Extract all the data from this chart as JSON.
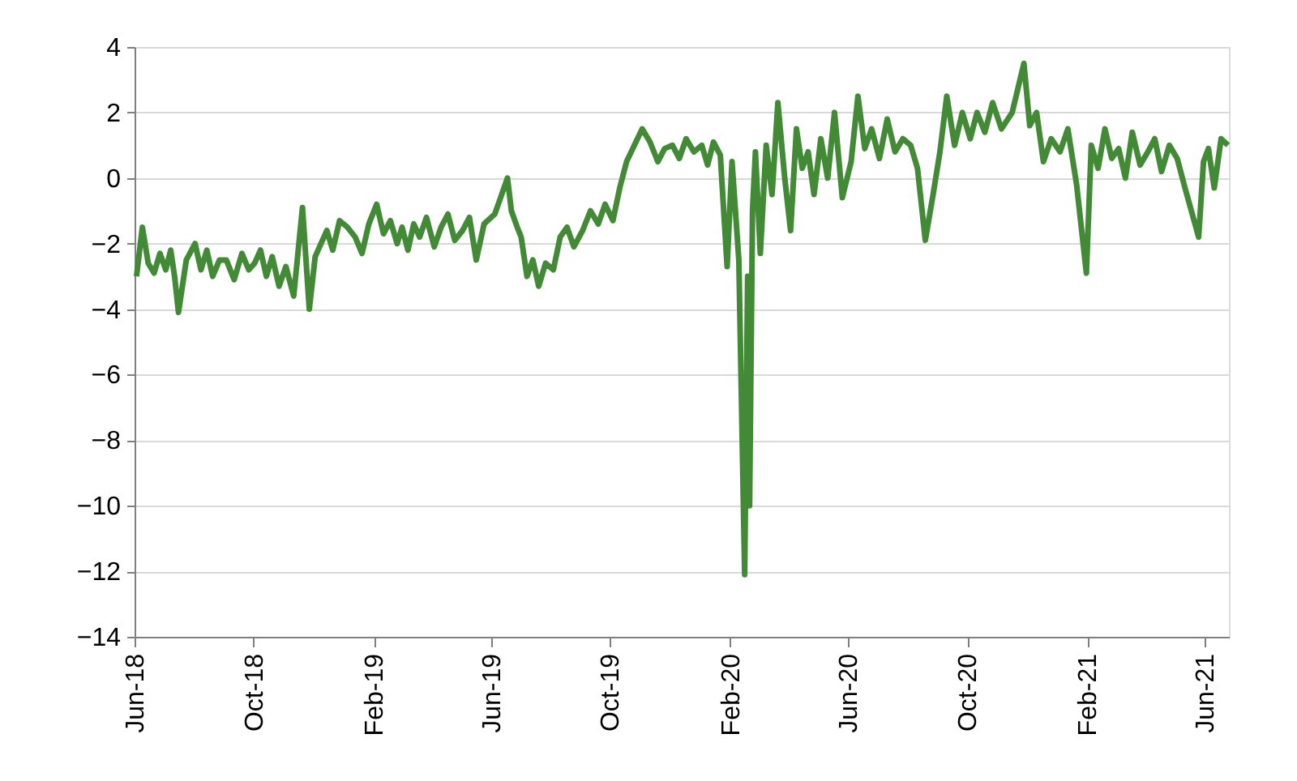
{
  "chart_data": {
    "type": "line",
    "x": [
      "2018-06-03",
      "2018-06-09",
      "2018-06-15",
      "2018-06-21",
      "2018-06-27",
      "2018-07-03",
      "2018-07-08",
      "2018-07-12",
      "2018-07-16",
      "2018-07-24",
      "2018-08-02",
      "2018-08-08",
      "2018-08-14",
      "2018-08-20",
      "2018-08-27",
      "2018-09-03",
      "2018-09-11",
      "2018-09-19",
      "2018-09-26",
      "2018-10-02",
      "2018-10-08",
      "2018-10-14",
      "2018-10-20",
      "2018-10-27",
      "2018-11-03",
      "2018-11-11",
      "2018-11-20",
      "2018-11-27",
      "2018-12-03",
      "2018-12-09",
      "2018-12-15",
      "2018-12-21",
      "2018-12-28",
      "2019-01-05",
      "2019-01-13",
      "2019-01-20",
      "2019-01-27",
      "2019-02-04",
      "2019-02-11",
      "2019-02-18",
      "2019-02-25",
      "2019-03-02",
      "2019-03-08",
      "2019-03-14",
      "2019-03-20",
      "2019-03-27",
      "2019-04-04",
      "2019-04-11",
      "2019-04-18",
      "2019-04-25",
      "2019-05-03",
      "2019-05-10",
      "2019-05-17",
      "2019-05-25",
      "2019-06-05",
      "2019-06-18",
      "2019-06-22",
      "2019-06-28",
      "2019-07-02",
      "2019-07-08",
      "2019-07-14",
      "2019-07-20",
      "2019-07-27",
      "2019-08-04",
      "2019-08-11",
      "2019-08-18",
      "2019-08-25",
      "2019-09-03",
      "2019-09-11",
      "2019-09-19",
      "2019-09-26",
      "2019-10-04",
      "2019-10-11",
      "2019-10-18",
      "2019-10-26",
      "2019-11-03",
      "2019-11-11",
      "2019-11-19",
      "2019-11-26",
      "2019-12-04",
      "2019-12-11",
      "2019-12-18",
      "2019-12-26",
      "2020-01-03",
      "2020-01-09",
      "2020-01-15",
      "2020-01-22",
      "2020-01-29",
      "2020-02-03",
      "2020-02-10",
      "2020-02-16",
      "2020-02-19",
      "2020-02-21",
      "2020-02-24",
      "2020-02-27",
      "2020-03-03",
      "2020-03-09",
      "2020-03-15",
      "2020-03-21",
      "2020-03-28",
      "2020-04-03",
      "2020-04-09",
      "2020-04-15",
      "2020-04-21",
      "2020-04-27",
      "2020-05-04",
      "2020-05-11",
      "2020-05-18",
      "2020-05-26",
      "2020-06-04",
      "2020-06-11",
      "2020-06-18",
      "2020-06-25",
      "2020-07-03",
      "2020-07-11",
      "2020-07-19",
      "2020-07-27",
      "2020-08-04",
      "2020-08-11",
      "2020-08-19",
      "2020-08-27",
      "2020-09-03",
      "2020-09-10",
      "2020-09-18",
      "2020-09-26",
      "2020-10-04",
      "2020-10-11",
      "2020-10-19",
      "2020-10-27",
      "2020-11-05",
      "2020-11-16",
      "2020-11-28",
      "2020-12-04",
      "2020-12-11",
      "2020-12-18",
      "2020-12-26",
      "2021-01-04",
      "2021-01-12",
      "2021-01-21",
      "2021-01-31",
      "2021-02-05",
      "2021-02-12",
      "2021-02-19",
      "2021-02-26",
      "2021-03-05",
      "2021-03-12",
      "2021-03-19",
      "2021-03-27",
      "2021-04-04",
      "2021-04-11",
      "2021-04-18",
      "2021-04-26",
      "2021-05-04",
      "2021-05-12",
      "2021-05-26",
      "2021-05-31",
      "2021-06-05",
      "2021-06-11",
      "2021-06-18",
      "2021-06-25"
    ],
    "series": [
      {
        "color": "#438a37",
        "values": [
          -3.0,
          -1.5,
          -2.6,
          -2.9,
          -2.3,
          -2.8,
          -2.2,
          -3.0,
          -4.1,
          -2.5,
          -2.0,
          -2.8,
          -2.2,
          -3.0,
          -2.5,
          -2.5,
          -3.1,
          -2.3,
          -2.8,
          -2.6,
          -2.2,
          -3.0,
          -2.4,
          -3.3,
          -2.7,
          -3.6,
          -0.9,
          -4.0,
          -2.4,
          -2.0,
          -1.6,
          -2.2,
          -1.3,
          -1.5,
          -1.8,
          -2.3,
          -1.4,
          -0.8,
          -1.7,
          -1.3,
          -2.0,
          -1.5,
          -2.2,
          -1.4,
          -1.8,
          -1.2,
          -2.1,
          -1.5,
          -1.1,
          -1.9,
          -1.6,
          -1.2,
          -2.5,
          -1.4,
          -1.1,
          0.0,
          -1.0,
          -1.5,
          -1.8,
          -3.0,
          -2.5,
          -3.3,
          -2.6,
          -2.8,
          -1.8,
          -1.5,
          -2.1,
          -1.6,
          -1.0,
          -1.4,
          -0.8,
          -1.3,
          -0.3,
          0.5,
          1.0,
          1.5,
          1.1,
          0.5,
          0.9,
          1.0,
          0.6,
          1.2,
          0.8,
          1.0,
          0.4,
          1.1,
          0.7,
          -2.7,
          0.5,
          -2.5,
          -12.1,
          -3.0,
          -10.0,
          -1.0,
          0.8,
          -2.3,
          1.0,
          -0.5,
          2.3,
          0.0,
          -1.6,
          1.5,
          0.3,
          0.8,
          -0.5,
          1.2,
          0.0,
          2.0,
          -0.6,
          0.5,
          2.5,
          0.9,
          1.5,
          0.6,
          1.8,
          0.8,
          1.2,
          1.0,
          0.3,
          -1.9,
          -0.5,
          0.8,
          2.5,
          1.0,
          2.0,
          1.2,
          2.0,
          1.4,
          2.3,
          1.5,
          2.0,
          3.5,
          1.6,
          2.0,
          0.5,
          1.2,
          0.8,
          1.5,
          -0.2,
          -2.9,
          1.0,
          0.3,
          1.5,
          0.6,
          0.9,
          0.0,
          1.4,
          0.4,
          0.8,
          1.2,
          0.2,
          1.0,
          0.6,
          -0.3,
          -1.8,
          0.5,
          0.9,
          -0.3,
          1.2,
          1.0
        ]
      }
    ],
    "xlim": [
      "2018-06-01",
      "2021-06-26"
    ],
    "xticks": [
      {
        "value": "2018-06-01",
        "label": "Jun-18"
      },
      {
        "value": "2018-10-01",
        "label": "Oct-18"
      },
      {
        "value": "2019-02-01",
        "label": "Feb-19"
      },
      {
        "value": "2019-06-01",
        "label": "Jun-19"
      },
      {
        "value": "2019-10-01",
        "label": "Oct-19"
      },
      {
        "value": "2020-02-01",
        "label": "Feb-20"
      },
      {
        "value": "2020-06-01",
        "label": "Jun-20"
      },
      {
        "value": "2020-10-01",
        "label": "Oct-20"
      },
      {
        "value": "2021-02-01",
        "label": "Feb-21"
      },
      {
        "value": "2021-06-01",
        "label": "Jun-21"
      }
    ],
    "ylim": [
      -14,
      4
    ],
    "yticks": [
      -14,
      -12,
      -10,
      -8,
      -6,
      -4,
      -2,
      0,
      2,
      4
    ],
    "grid": "y",
    "marker": "none",
    "line_style": "solid"
  }
}
